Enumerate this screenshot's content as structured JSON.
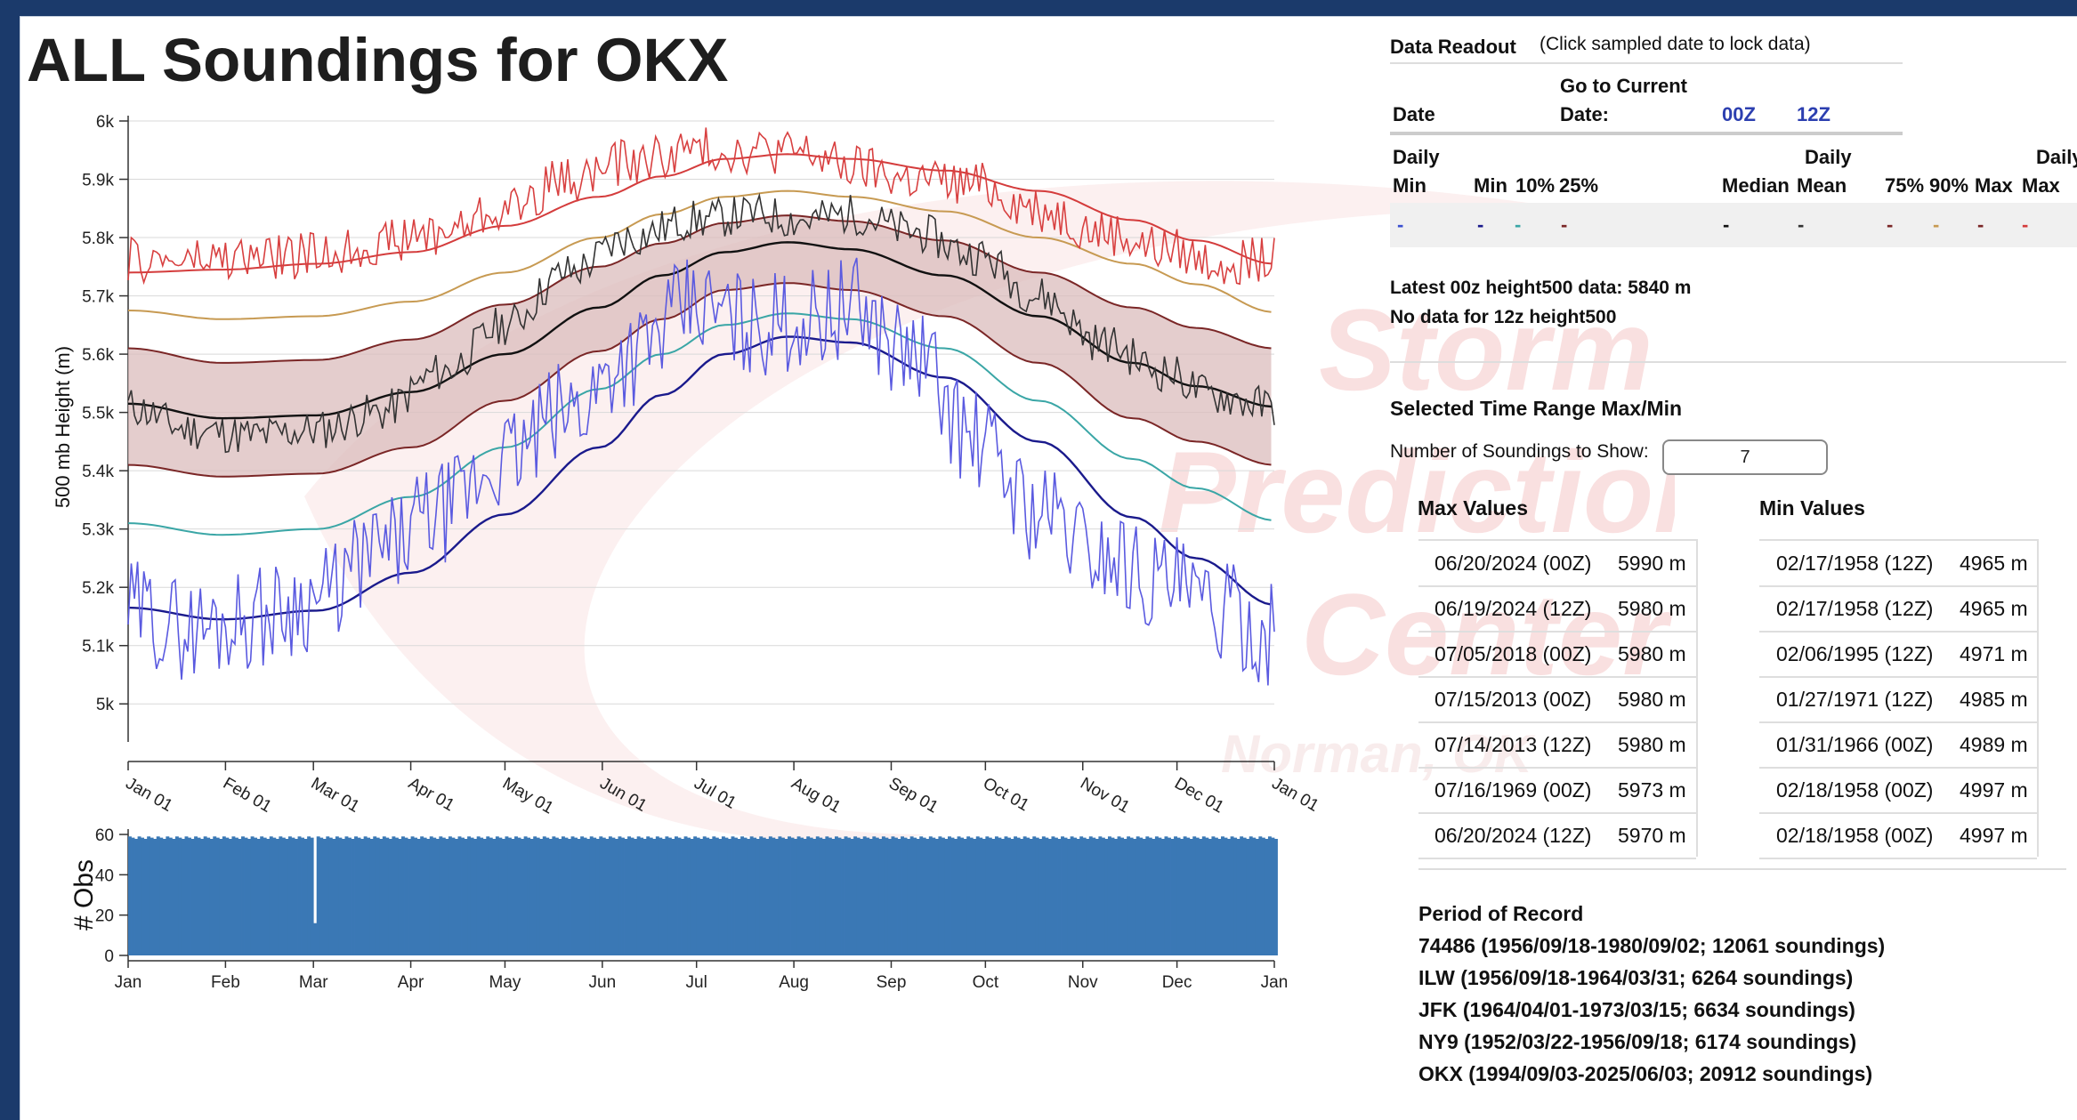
{
  "page": {
    "title": "ALL Soundings for OKX"
  },
  "watermark": {
    "lines": [
      "Storm",
      "Prediction",
      "Center",
      "Norman, OK"
    ]
  },
  "chart_data": [
    {
      "type": "line",
      "title": "",
      "ylabel": "500 mb Height (m)",
      "xlabel": "",
      "ylim": [
        4950,
        6000
      ],
      "y_ticks": [
        "5k",
        "5.1k",
        "5.2k",
        "5.3k",
        "5.4k",
        "5.5k",
        "5.6k",
        "5.7k",
        "5.8k",
        "5.9k",
        "6k"
      ],
      "y_tick_values": [
        5000,
        5100,
        5200,
        5300,
        5400,
        5500,
        5600,
        5700,
        5800,
        5900,
        6000
      ],
      "x_ticks": [
        "Jan 01",
        "Feb 01",
        "Mar 01",
        "Apr 01",
        "May 01",
        "Jun 01",
        "Jul 01",
        "Aug 01",
        "Sep 01",
        "Oct 01",
        "Nov 01",
        "Dec 01",
        "Jan 01"
      ],
      "x_tick_days": [
        0,
        31,
        59,
        90,
        120,
        151,
        181,
        212,
        243,
        273,
        304,
        334,
        365
      ],
      "grid": true,
      "shaded_band": {
        "lower": "Daily 25%",
        "upper": "Daily 75%",
        "color": "#dbbcbc"
      },
      "series": [
        {
          "color": "#d43c3c",
          "x": [
            0,
            30,
            60,
            90,
            120,
            150,
            170,
            190,
            210,
            230,
            260,
            290,
            320,
            340,
            365
          ],
          "values": [
            5740,
            5745,
            5755,
            5775,
            5820,
            5870,
            5905,
            5935,
            5943,
            5935,
            5915,
            5880,
            5830,
            5795,
            5755
          ]
        },
        {
          "color": "#c79a52",
          "x": [
            0,
            30,
            60,
            90,
            120,
            150,
            170,
            190,
            210,
            230,
            260,
            290,
            320,
            340,
            365
          ],
          "values": [
            5675,
            5660,
            5665,
            5690,
            5740,
            5800,
            5840,
            5870,
            5880,
            5870,
            5845,
            5800,
            5755,
            5720,
            5672
          ]
        },
        {
          "color": "#7a2626",
          "x": [
            0,
            30,
            60,
            90,
            120,
            150,
            170,
            190,
            210,
            230,
            260,
            290,
            320,
            340,
            365
          ],
          "values": [
            5610,
            5585,
            5590,
            5625,
            5685,
            5750,
            5790,
            5825,
            5838,
            5828,
            5795,
            5740,
            5680,
            5645,
            5610
          ]
        },
        {
          "color": "#111111",
          "x": [
            0,
            30,
            60,
            90,
            120,
            150,
            170,
            190,
            210,
            230,
            260,
            290,
            320,
            340,
            365
          ],
          "values": [
            5515,
            5490,
            5495,
            5535,
            5600,
            5680,
            5735,
            5775,
            5792,
            5780,
            5735,
            5665,
            5585,
            5545,
            5510
          ]
        },
        {
          "color": "#7a2626",
          "x": [
            0,
            30,
            60,
            90,
            120,
            150,
            170,
            190,
            210,
            230,
            260,
            290,
            320,
            340,
            365
          ],
          "values": [
            5410,
            5390,
            5395,
            5440,
            5520,
            5605,
            5660,
            5710,
            5722,
            5710,
            5665,
            5585,
            5490,
            5450,
            5410
          ]
        },
        {
          "color": "#3aa6a6",
          "x": [
            0,
            30,
            60,
            90,
            120,
            150,
            170,
            190,
            210,
            230,
            260,
            290,
            320,
            340,
            365
          ],
          "values": [
            5310,
            5290,
            5300,
            5355,
            5440,
            5540,
            5600,
            5650,
            5670,
            5660,
            5610,
            5520,
            5420,
            5370,
            5315
          ]
        },
        {
          "color": "#1a1a8c",
          "x": [
            0,
            30,
            60,
            90,
            120,
            150,
            170,
            190,
            210,
            230,
            260,
            290,
            320,
            340,
            365
          ],
          "values": [
            5165,
            5145,
            5160,
            5225,
            5325,
            5440,
            5530,
            5600,
            5630,
            5620,
            5560,
            5450,
            5320,
            5250,
            5170
          ]
        },
        {
          "color": "#333333",
          "x": [
            0,
            20,
            40,
            60,
            80,
            100,
            120,
            140,
            160,
            180,
            200,
            215,
            230,
            250,
            270,
            290,
            310,
            330,
            345,
            365
          ],
          "values": [
            5510,
            5470,
            5460,
            5470,
            5500,
            5570,
            5650,
            5740,
            5800,
            5830,
            5840,
            5830,
            5840,
            5810,
            5770,
            5700,
            5620,
            5570,
            5530,
            5510
          ]
        },
        {
          "color": "#5a5ae0",
          "x": [
            0,
            20,
            40,
            60,
            80,
            100,
            120,
            140,
            160,
            180,
            200,
            215,
            230,
            250,
            270,
            290,
            310,
            330,
            345,
            365
          ],
          "values": [
            5160,
            5130,
            5150,
            5180,
            5260,
            5330,
            5420,
            5500,
            5600,
            5680,
            5650,
            5660,
            5680,
            5600,
            5450,
            5330,
            5260,
            5210,
            5160,
            5120
          ]
        },
        {
          "color": "#d84040",
          "x": [
            0,
            20,
            40,
            60,
            80,
            100,
            120,
            140,
            160,
            180,
            200,
            215,
            230,
            250,
            270,
            290,
            310,
            330,
            345,
            365
          ],
          "values": [
            5760,
            5760,
            5765,
            5770,
            5790,
            5810,
            5850,
            5900,
            5930,
            5950,
            5950,
            5945,
            5920,
            5900,
            5890,
            5850,
            5810,
            5780,
            5760,
            5760
          ]
        }
      ]
    },
    {
      "type": "bar",
      "title": "",
      "ylabel": "# Obs",
      "xlabel": "",
      "ylim": [
        0,
        60
      ],
      "y_ticks": [
        "0",
        "20",
        "40",
        "60"
      ],
      "y_tick_values": [
        0,
        20,
        40,
        60
      ],
      "x_ticks": [
        "Jan",
        "Feb",
        "Mar",
        "Apr",
        "May",
        "Jun",
        "Jul",
        "Aug",
        "Sep",
        "Oct",
        "Nov",
        "Dec",
        "Jan"
      ],
      "x_tick_days": [
        0,
        31,
        59,
        90,
        120,
        151,
        181,
        212,
        243,
        273,
        304,
        334,
        365
      ],
      "color": "#3a78b5",
      "typical_value": 59,
      "exceptions": [
        {
          "day": 59,
          "value": 16
        }
      ]
    }
  ],
  "readout": {
    "heading": "Data Readout",
    "hint": "(Click sampled date to lock data)",
    "date_label": "Date",
    "go_current": "Go to Current",
    "go_current_2": "Date:",
    "btn_00z": "00Z",
    "btn_12z": "12Z",
    "col_daily_min_1": "Daily",
    "col_daily_min_2": "Min",
    "col_min": "Min",
    "col_10": "10%",
    "col_25": "25%",
    "col_median_1": "Daily",
    "col_median_2": "Median",
    "col_mean": "Mean",
    "col_75": "75%",
    "col_90": "90%",
    "col_max": "Max",
    "col_daily_max_1": "Daily",
    "col_daily_max_2": "Max",
    "marker": "-",
    "marker_colors": [
      "#3a4fd0",
      "#1a1a8c",
      "#3aa6a6",
      "#7a2626",
      "#111111",
      "#333333",
      "#7a2626",
      "#c79a52",
      "#7a2626",
      "#d43c3c"
    ]
  },
  "latest": {
    "line1": "Latest 00z height500 data: 5840 m",
    "line2": "No data for 12z height500"
  },
  "range": {
    "heading": "Selected Time Range Max/Min",
    "num_label": "Number of Soundings to Show:",
    "num_value": "7",
    "max_heading": "Max Values",
    "min_heading": "Min Values",
    "max_rows": [
      {
        "date": "06/20/2024 (00Z)",
        "value": "5990 m"
      },
      {
        "date": "06/19/2024 (12Z)",
        "value": "5980 m"
      },
      {
        "date": "07/05/2018 (00Z)",
        "value": "5980 m"
      },
      {
        "date": "07/15/2013 (00Z)",
        "value": "5980 m"
      },
      {
        "date": "07/14/2013 (12Z)",
        "value": "5980 m"
      },
      {
        "date": "07/16/1969 (00Z)",
        "value": "5973 m"
      },
      {
        "date": "06/20/2024 (12Z)",
        "value": "5970 m"
      }
    ],
    "min_rows": [
      {
        "date": "02/17/1958 (12Z)",
        "value": "4965 m"
      },
      {
        "date": "02/17/1958 (12Z)",
        "value": "4965 m"
      },
      {
        "date": "02/06/1995 (12Z)",
        "value": "4971 m"
      },
      {
        "date": "01/27/1971 (12Z)",
        "value": "4985 m"
      },
      {
        "date": "01/31/1966 (00Z)",
        "value": "4989 m"
      },
      {
        "date": "02/18/1958 (00Z)",
        "value": "4997 m"
      },
      {
        "date": "02/18/1958 (00Z)",
        "value": "4997 m"
      }
    ]
  },
  "period": {
    "heading": "Period of Record",
    "lines": [
      "74486 (1956/09/18-1980/09/02; 12061 soundings)",
      "ILW (1956/09/18-1964/03/31; 6264 soundings)",
      "JFK (1964/04/01-1973/03/15; 6634 soundings)",
      "NY9 (1952/03/22-1956/09/18; 6174 soundings)",
      "OKX (1994/09/03-2025/06/03; 20912 soundings)"
    ]
  }
}
